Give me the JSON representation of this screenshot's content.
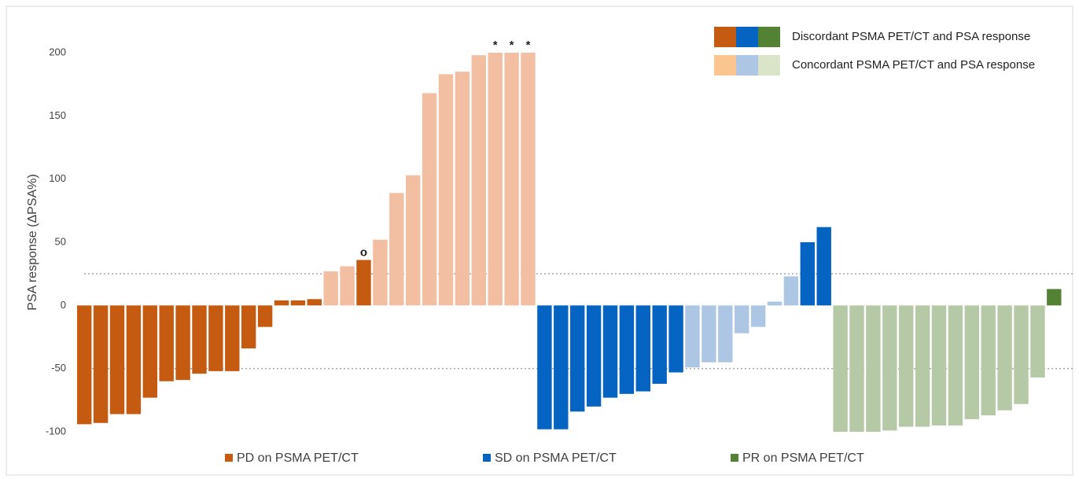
{
  "chart_data": {
    "type": "bar",
    "y_label": "PSA response (ΔPSA%)",
    "values": [
      -94,
      -93,
      -86,
      -86,
      -73,
      -60,
      -59,
      -54,
      -52,
      -52,
      -34,
      -17,
      4,
      4,
      5,
      27,
      31,
      36,
      52,
      89,
      103,
      168,
      183,
      185,
      198,
      200,
      200,
      200,
      -98,
      -98,
      -84,
      -80,
      -73,
      -70,
      -68,
      -62,
      -53,
      -49,
      -45,
      -45,
      -22,
      -17,
      3,
      23,
      50,
      62,
      -100,
      -100,
      -100,
      -99,
      -96,
      -96,
      -95,
      -95,
      -90,
      -87,
      -83,
      -78,
      -57,
      13
    ],
    "colors": [
      "#c55a11",
      "#c55a11",
      "#c55a11",
      "#c55a11",
      "#c55a11",
      "#c55a11",
      "#c55a11",
      "#c55a11",
      "#c55a11",
      "#c55a11",
      "#c55a11",
      "#c55a11",
      "#c55a11",
      "#c55a11",
      "#c55a11",
      "#f3bfa3",
      "#f3bfa3",
      "#c55a11",
      "#f3bfa3",
      "#f3bfa3",
      "#f3bfa3",
      "#f3bfa3",
      "#f3bfa3",
      "#f3bfa3",
      "#f3bfa3",
      "#f3bfa3",
      "#f3bfa3",
      "#f3bfa3",
      "#0563c1",
      "#0563c1",
      "#0563c1",
      "#0563c1",
      "#0563c1",
      "#0563c1",
      "#0563c1",
      "#0563c1",
      "#0563c1",
      "#adc6e3",
      "#adc6e3",
      "#adc6e3",
      "#adc6e3",
      "#adc6e3",
      "#adc6e3",
      "#adc6e3",
      "#0563c1",
      "#0563c1",
      "#b6c9a6",
      "#b6c9a6",
      "#b6c9a6",
      "#b6c9a6",
      "#b6c9a6",
      "#b6c9a6",
      "#b6c9a6",
      "#b6c9a6",
      "#b6c9a6",
      "#b6c9a6",
      "#b6c9a6",
      "#b6c9a6",
      "#b6c9a6",
      "#548235"
    ],
    "bar_labels": [
      null,
      null,
      null,
      null,
      null,
      null,
      null,
      null,
      null,
      null,
      null,
      null,
      null,
      null,
      null,
      null,
      null,
      "o",
      null,
      null,
      null,
      null,
      null,
      null,
      null,
      "*",
      "*",
      "*",
      null,
      null,
      null,
      null,
      null,
      null,
      null,
      null,
      null,
      null,
      null,
      null,
      null,
      null,
      null,
      null,
      null,
      null,
      null,
      null,
      null,
      null,
      null,
      null,
      null,
      null,
      null,
      null,
      null,
      null,
      null,
      null
    ],
    "ylim": [
      -100,
      200
    ],
    "yticks": [
      -100,
      -50,
      0,
      50,
      100,
      150,
      200
    ],
    "reference_lines": [
      25,
      -50
    ],
    "legend_top": [
      {
        "label": "Discordant PSMA PET/CT and PSA response",
        "colors": [
          "#c55a11",
          "#0563c1",
          "#548235"
        ]
      },
      {
        "label": "Concordant PSMA PET/CT and PSA response",
        "colors": [
          "#fbc590",
          "#adc6e3",
          "#d9e4c8"
        ]
      }
    ],
    "legend_bottom": [
      {
        "label": "PD on PSMA PET/CT",
        "color": "#c55a11"
      },
      {
        "label": "SD on PSMA PET/CT",
        "color": "#0563c1"
      },
      {
        "label": "PR on PSMA PET/CT",
        "color": "#548235"
      }
    ]
  }
}
